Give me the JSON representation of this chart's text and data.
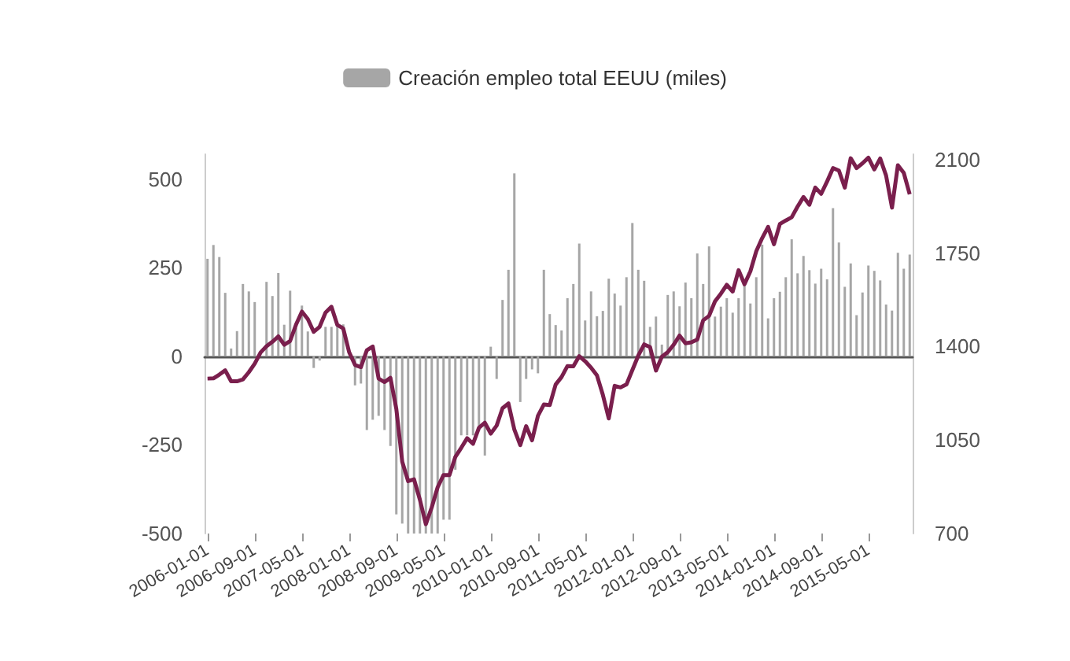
{
  "chart_data": {
    "type": "bar",
    "categories": [
      "2006-01-01",
      null,
      null,
      null,
      null,
      null,
      null,
      null,
      "2006-09-01",
      null,
      null,
      null,
      null,
      null,
      null,
      null,
      "2007-05-01",
      null,
      null,
      null,
      null,
      null,
      null,
      null,
      "2008-01-01",
      null,
      null,
      null,
      null,
      null,
      null,
      null,
      "2008-09-01",
      null,
      null,
      null,
      null,
      null,
      null,
      null,
      "2009-05-01",
      null,
      null,
      null,
      null,
      null,
      null,
      null,
      "2010-01-01",
      null,
      null,
      null,
      null,
      null,
      null,
      null,
      "2010-09-01",
      null,
      null,
      null,
      null,
      null,
      null,
      null,
      "2011-05-01",
      null,
      null,
      null,
      null,
      null,
      null,
      null,
      "2012-01-01",
      null,
      null,
      null,
      null,
      null,
      null,
      null,
      "2012-09-01",
      null,
      null,
      null,
      null,
      null,
      null,
      null,
      "2013-05-01",
      null,
      null,
      null,
      null,
      null,
      null,
      null,
      "2014-01-01",
      null,
      null,
      null,
      null,
      null,
      null,
      null,
      "2014-09-01",
      null,
      null,
      null,
      null,
      null,
      null,
      null,
      "2015-05-01",
      null,
      null,
      null,
      null,
      null,
      null,
      null
    ],
    "series": [
      {
        "name": "Creación empleo total EEUU (miles)",
        "color": "#a6a6a6",
        "values": [
          275,
          314,
          280,
          179,
          22,
          71,
          204,
          183,
          153,
          null,
          210,
          170,
          235,
          89,
          185,
          80,
          143,
          70,
          -33,
          -12,
          83,
          83,
          89,
          90,
          null,
          -82,
          -77,
          -208,
          -179,
          -168,
          -208,
          -253,
          -446,
          -472,
          -500,
          -500,
          -500,
          -500,
          -500,
          -500,
          -461,
          -461,
          -320,
          -223,
          -223,
          -223,
          -210,
          -280,
          27,
          -64,
          159,
          244,
          516,
          -129,
          -64,
          -37,
          -48,
          244,
          119,
          88,
          73,
          164,
          204,
          318,
          101,
          183,
          113,
          128,
          219,
          177,
          143,
          223,
          376,
          244,
          213,
          83,
          112,
          33,
          173,
          183,
          141,
          208,
          164,
          290,
          204,
          310,
          112,
          140,
          164,
          123,
          164,
          213,
          149,
          223,
          315,
          107,
          164,
          182,
          223,
          330,
          234,
          283,
          243,
          205,
          247,
          217,
          418,
          321,
          196,
          262,
          116,
          180,
          256,
          241,
          214,
          146,
          129,
          292,
          247,
          287
        ]
      },
      {
        "type": "line",
        "axis": "y2",
        "color": "#7a1f4d",
        "values": [
          1280,
          1281,
          1295,
          1311,
          1270,
          1270,
          1277,
          1304,
          1336,
          1378,
          1401,
          1418,
          1438,
          1407,
          1421,
          1482,
          1531,
          1503,
          1455,
          1474,
          1527,
          1549,
          1481,
          1468,
          1379,
          1331,
          1323,
          1386,
          1400,
          1280,
          1267,
          1283,
          1166,
          969,
          896,
          903,
          826,
          735,
          798,
          873,
          919,
          919,
          987,
          1021,
          1057,
          1036,
          1096,
          1115,
          1074,
          1104,
          1169,
          1187,
          1089,
          1031,
          1102,
          1049,
          1141,
          1183,
          1181,
          1258,
          1286,
          1327,
          1326,
          1364,
          1345,
          1321,
          1292,
          1219,
          1131,
          1253,
          1247,
          1258,
          1312,
          1366,
          1408,
          1398,
          1310,
          1362,
          1379,
          1407,
          1441,
          1412,
          1416,
          1426,
          1498,
          1515,
          1569,
          1598,
          1631,
          1606,
          1686,
          1633,
          1682,
          1757,
          1806,
          1848,
          1783,
          1859,
          1872,
          1884,
          1924,
          1960,
          1931,
          1995,
          1972,
          2018,
          2068,
          2059,
          1995,
          2105,
          2068,
          2086,
          2107,
          2063,
          2104,
          2040,
          1920,
          2079,
          2050,
          1970
        ]
      }
    ],
    "ylim": [
      -500,
      570
    ],
    "yticks": [
      -500,
      -250,
      0,
      250,
      500
    ],
    "y2lim": [
      700,
      2120
    ],
    "y2ticks": [
      700,
      1050,
      1400,
      1750,
      2100
    ],
    "legend": "top",
    "marker": "none"
  }
}
